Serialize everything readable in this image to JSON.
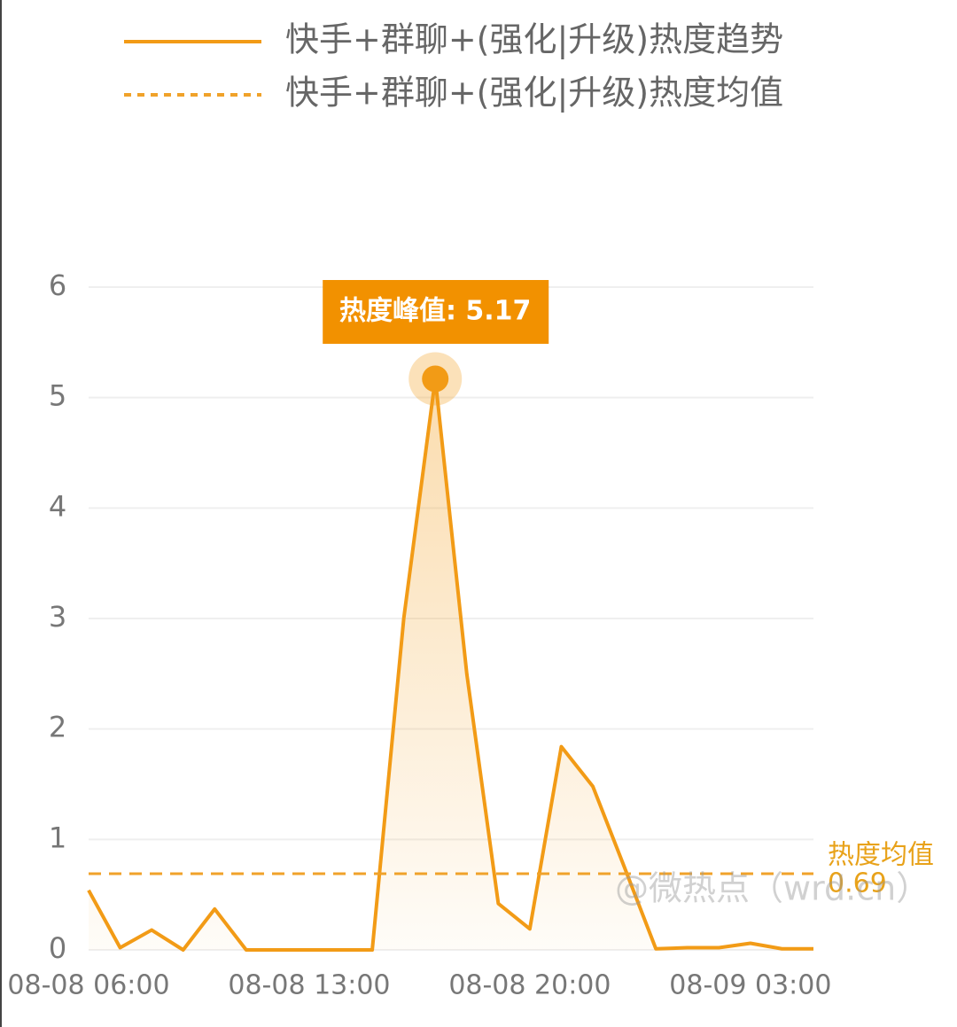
{
  "chart_data": {
    "type": "line",
    "categories": [
      "08-08 06:00",
      null,
      null,
      null,
      null,
      null,
      null,
      "08-08 13:00",
      null,
      null,
      null,
      null,
      null,
      null,
      "08-08 20:00",
      null,
      null,
      null,
      null,
      null,
      null,
      "08-09 03:00",
      null,
      null
    ],
    "series": [
      {
        "name": "快手+群聊+(强化|升级)热度趋势",
        "color": "#f29b16",
        "values": [
          0.54,
          0.02,
          0.18,
          0,
          0.37,
          0,
          0,
          0,
          0,
          0,
          3.0,
          5.17,
          2.5,
          0.42,
          0.19,
          1.84,
          1.48,
          0.75,
          0.01,
          0.02,
          0.02,
          0.06,
          0.01,
          0.01
        ]
      },
      {
        "name": "快手+群聊+(强化|升级)热度均值",
        "color": "#f0a22a",
        "value": 0.69,
        "dashed": true
      }
    ],
    "ylim": [
      0,
      6
    ],
    "yticks": [
      0,
      1,
      2,
      3,
      4,
      5,
      6
    ],
    "grid": true,
    "peak_label": "热度峰值: 5.17",
    "mean_label": "热度均值",
    "watermark": "@微热点（wrd.cn）"
  }
}
